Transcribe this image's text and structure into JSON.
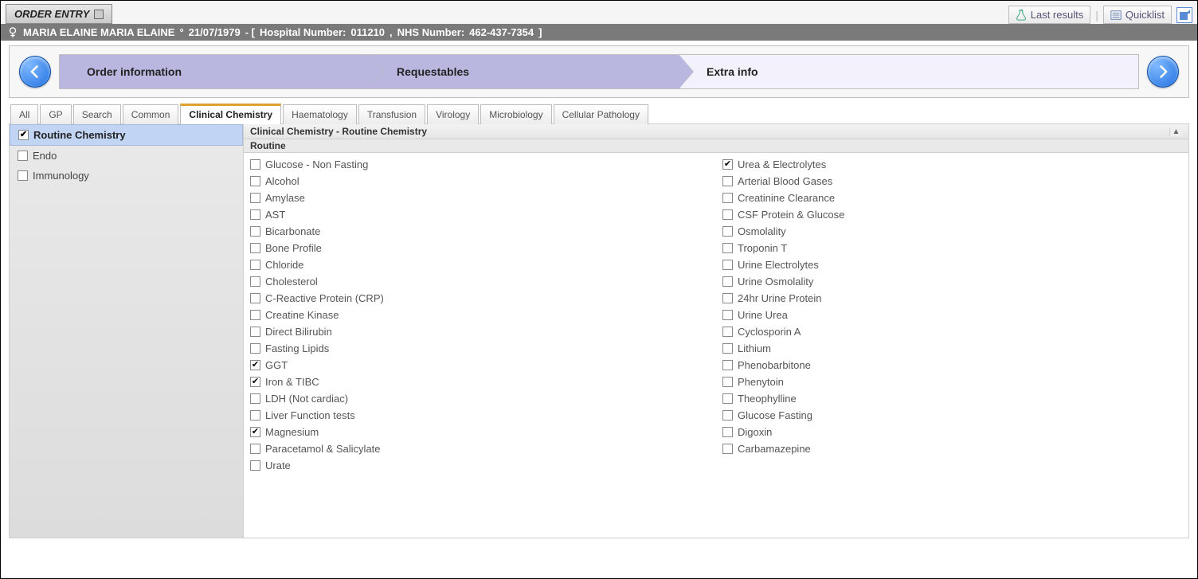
{
  "colors": {
    "accent_purple": "#b9b7e0",
    "accent_light": "#f3f1fb",
    "tab_active_border": "#e0a030",
    "side_active_bg": "#c2d4f3",
    "nav_blue": "#1f6fe0"
  },
  "topbar": {
    "order_entry_label": "ORDER ENTRY",
    "last_results_label": "Last results",
    "quicklist_label": "Quicklist"
  },
  "patient": {
    "name": "MARIA ELAINE MARIA ELAINE",
    "dob": "21/07/1979",
    "hospital_number_label": "Hospital Number:",
    "hospital_number": "011210",
    "nhs_number_label": "NHS Number:",
    "nhs_number": "462-437-7354"
  },
  "wizard": {
    "steps": [
      {
        "label": "Order information",
        "style": "purple"
      },
      {
        "label": "Requestables",
        "style": "purple"
      },
      {
        "label": "Extra info",
        "style": "light"
      }
    ]
  },
  "tabs": [
    {
      "label": "All"
    },
    {
      "label": "GP"
    },
    {
      "label": "Search"
    },
    {
      "label": "Common"
    },
    {
      "label": "Clinical Chemistry",
      "active": true
    },
    {
      "label": "Haematology"
    },
    {
      "label": "Transfusion"
    },
    {
      "label": "Virology"
    },
    {
      "label": "Microbiology"
    },
    {
      "label": "Cellular Pathology"
    }
  ],
  "sidebar": {
    "items": [
      {
        "label": "Routine Chemistry",
        "checked": true,
        "active": true
      },
      {
        "label": "Endo",
        "checked": false
      },
      {
        "label": "Immunology",
        "checked": false
      }
    ]
  },
  "panel": {
    "title": "Clinical Chemistry - Routine Chemistry",
    "section": "Routine",
    "left_tests": [
      {
        "label": "Glucose - Non Fasting",
        "checked": false
      },
      {
        "label": "Alcohol",
        "checked": false
      },
      {
        "label": "Amylase",
        "checked": false
      },
      {
        "label": "AST",
        "checked": false
      },
      {
        "label": "Bicarbonate",
        "checked": false
      },
      {
        "label": "Bone Profile",
        "checked": false
      },
      {
        "label": "Chloride",
        "checked": false
      },
      {
        "label": "Cholesterol",
        "checked": false
      },
      {
        "label": "C-Reactive Protein (CRP)",
        "checked": false
      },
      {
        "label": "Creatine Kinase",
        "checked": false
      },
      {
        "label": "Direct Bilirubin",
        "checked": false
      },
      {
        "label": "Fasting Lipids",
        "checked": false
      },
      {
        "label": "GGT",
        "checked": true
      },
      {
        "label": "Iron & TIBC",
        "checked": true
      },
      {
        "label": "LDH (Not cardiac)",
        "checked": false
      },
      {
        "label": "Liver Function tests",
        "checked": false
      },
      {
        "label": "Magnesium",
        "checked": true
      },
      {
        "label": "Paracetamol & Salicylate",
        "checked": false
      },
      {
        "label": "Urate",
        "checked": false
      }
    ],
    "right_tests": [
      {
        "label": "Urea & Electrolytes",
        "checked": true
      },
      {
        "label": "Arterial Blood Gases",
        "checked": false
      },
      {
        "label": "Creatinine Clearance",
        "checked": false
      },
      {
        "label": "CSF Protein & Glucose",
        "checked": false
      },
      {
        "label": "Osmolality",
        "checked": false
      },
      {
        "label": "Troponin T",
        "checked": false
      },
      {
        "label": "Urine Electrolytes",
        "checked": false
      },
      {
        "label": "Urine Osmolality",
        "checked": false
      },
      {
        "label": "24hr Urine Protein",
        "checked": false
      },
      {
        "label": "Urine Urea",
        "checked": false
      },
      {
        "label": "Cyclosporin A",
        "checked": false
      },
      {
        "label": "Lithium",
        "checked": false
      },
      {
        "label": "Phenobarbitone",
        "checked": false
      },
      {
        "label": "Phenytoin",
        "checked": false
      },
      {
        "label": "Theophylline",
        "checked": false
      },
      {
        "label": "Glucose Fasting",
        "checked": false
      },
      {
        "label": "Digoxin",
        "checked": false
      },
      {
        "label": "Carbamazepine",
        "checked": false
      }
    ]
  }
}
